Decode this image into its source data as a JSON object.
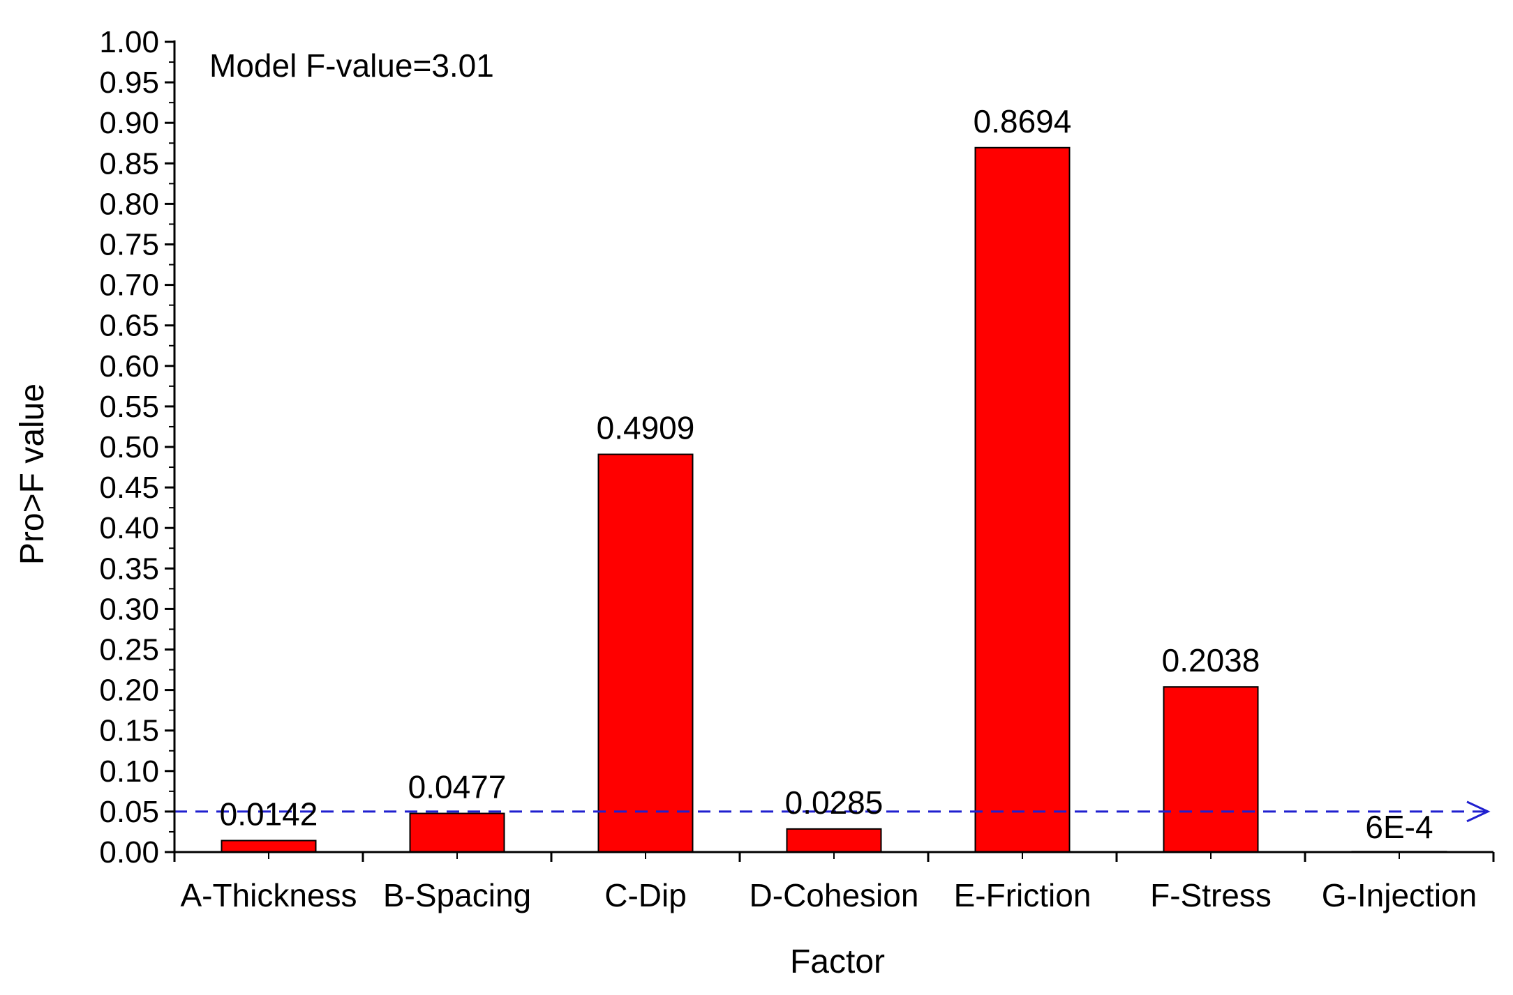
{
  "chart_data": {
    "type": "bar",
    "title": "",
    "xlabel": "Factor",
    "ylabel": "Pro>F value",
    "ylim": [
      0,
      1.0
    ],
    "yticks": [
      "0.00",
      "0.05",
      "0.10",
      "0.15",
      "0.20",
      "0.25",
      "0.30",
      "0.35",
      "0.40",
      "0.45",
      "0.50",
      "0.55",
      "0.60",
      "0.65",
      "0.70",
      "0.75",
      "0.80",
      "0.85",
      "0.90",
      "0.95",
      "1.00"
    ],
    "categories": [
      "A-Thickness",
      "B-Spacing",
      "C-Dip",
      "D-Cohesion",
      "E-Friction",
      "F-Stress",
      "G-Injection"
    ],
    "values": [
      0.0142,
      0.0477,
      0.4909,
      0.0285,
      0.8694,
      0.2038,
      0.0006
    ],
    "data_labels": [
      "0.0142",
      "0.0477",
      "0.4909",
      "0.0285",
      "0.8694",
      "0.2038",
      "6E-4"
    ],
    "reference_line": {
      "y": 0.05,
      "style": "dashed",
      "color": "#1f1fcf"
    },
    "annotation": "Model F-value=3.01",
    "grid": false,
    "legend": "none",
    "bar_color": "#ff0000",
    "bar_edge_color": "#000000"
  }
}
